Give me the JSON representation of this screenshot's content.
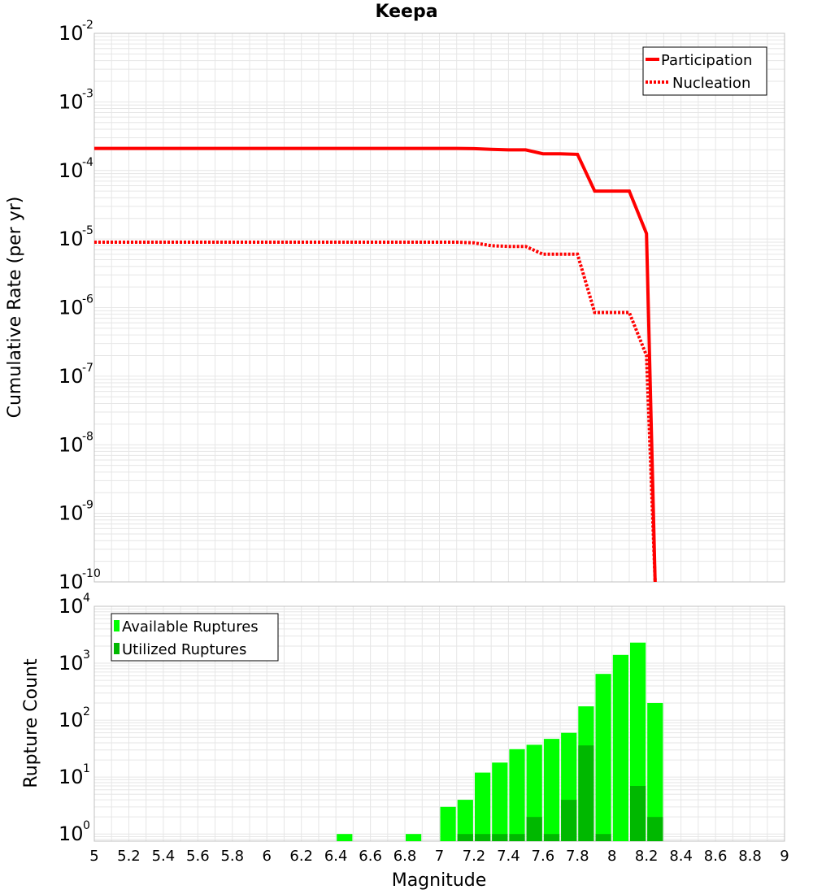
{
  "title": "Keepa",
  "colors": {
    "rate_line": "#ff0000",
    "available_bar": "#00ff00",
    "utilized_bar": "#00b800",
    "grid": "#e6e6e6",
    "frame": "#c0c0c0"
  },
  "xlabel": "Magnitude",
  "x_ticks": [
    "5",
    "5.2",
    "5.4",
    "5.6",
    "5.8",
    "6",
    "6.2",
    "6.4",
    "6.6",
    "6.8",
    "7",
    "7.2",
    "7.4",
    "7.6",
    "7.8",
    "8",
    "8.2",
    "8.4",
    "8.6",
    "8.8",
    "9"
  ],
  "chart_data": [
    {
      "type": "line",
      "ylabel": "Cumulative Rate (per yr)",
      "yscale": "log",
      "xlim": [
        5,
        9
      ],
      "ylim": [
        1e-10,
        0.01
      ],
      "y_decades": [
        {
          "base": "10",
          "exp": "-2"
        },
        {
          "base": "10",
          "exp": "-3"
        },
        {
          "base": "10",
          "exp": "-4"
        },
        {
          "base": "10",
          "exp": "-5"
        },
        {
          "base": "10",
          "exp": "-6"
        },
        {
          "base": "10",
          "exp": "-7"
        },
        {
          "base": "10",
          "exp": "-8"
        },
        {
          "base": "10",
          "exp": "-9"
        },
        {
          "base": "10",
          "exp": "-10"
        }
      ],
      "legend_position": "top-right",
      "series": [
        {
          "name": "Participation",
          "style": "solid",
          "x": [
            5.0,
            7.0,
            7.1,
            7.2,
            7.3,
            7.4,
            7.5,
            7.6,
            7.7,
            7.8,
            7.9,
            8.0,
            8.1,
            8.2,
            8.25
          ],
          "y": [
            0.00021,
            0.00021,
            0.00021,
            0.000208,
            0.000203,
            0.0002,
            0.0002,
            0.000175,
            0.000175,
            0.000172,
            5e-05,
            5e-05,
            5e-05,
            1.2e-05,
            1e-10
          ]
        },
        {
          "name": "Nucleation",
          "style": "dotted",
          "x": [
            5.0,
            7.0,
            7.1,
            7.2,
            7.3,
            7.4,
            7.5,
            7.6,
            7.7,
            7.8,
            7.9,
            8.0,
            8.1,
            8.2,
            8.25
          ],
          "y": [
            9e-06,
            9e-06,
            9e-06,
            8.8e-06,
            8e-06,
            7.8e-06,
            7.8e-06,
            6e-06,
            6e-06,
            6e-06,
            8.5e-07,
            8.5e-07,
            8.5e-07,
            2e-07,
            1e-10
          ]
        }
      ]
    },
    {
      "type": "bar",
      "ylabel": "Rupture Count",
      "yscale": "log",
      "xlim": [
        5,
        9
      ],
      "ylim": [
        0.75,
        10000
      ],
      "y_decades": [
        {
          "base": "10",
          "exp": "4"
        },
        {
          "base": "10",
          "exp": "3"
        },
        {
          "base": "10",
          "exp": "2"
        },
        {
          "base": "10",
          "exp": "1"
        },
        {
          "base": "10",
          "exp": "0"
        }
      ],
      "legend_position": "top-left",
      "bin_width": 0.1,
      "series": [
        {
          "name": "Available Ruptures",
          "x": [
            6.45,
            6.85,
            7.05,
            7.15,
            7.25,
            7.35,
            7.45,
            7.55,
            7.65,
            7.75,
            7.85,
            7.95,
            8.05,
            8.15,
            8.25
          ],
          "values": [
            1,
            1,
            3,
            4,
            12,
            18,
            31,
            37,
            47,
            60,
            175,
            650,
            1400,
            2300,
            200
          ]
        },
        {
          "name": "Utilized Ruptures",
          "x": [
            7.15,
            7.25,
            7.35,
            7.45,
            7.55,
            7.65,
            7.75,
            7.85,
            7.95,
            8.15,
            8.25
          ],
          "values": [
            1,
            1,
            1,
            1,
            2,
            1,
            4,
            36,
            1,
            7,
            2
          ]
        }
      ]
    }
  ]
}
